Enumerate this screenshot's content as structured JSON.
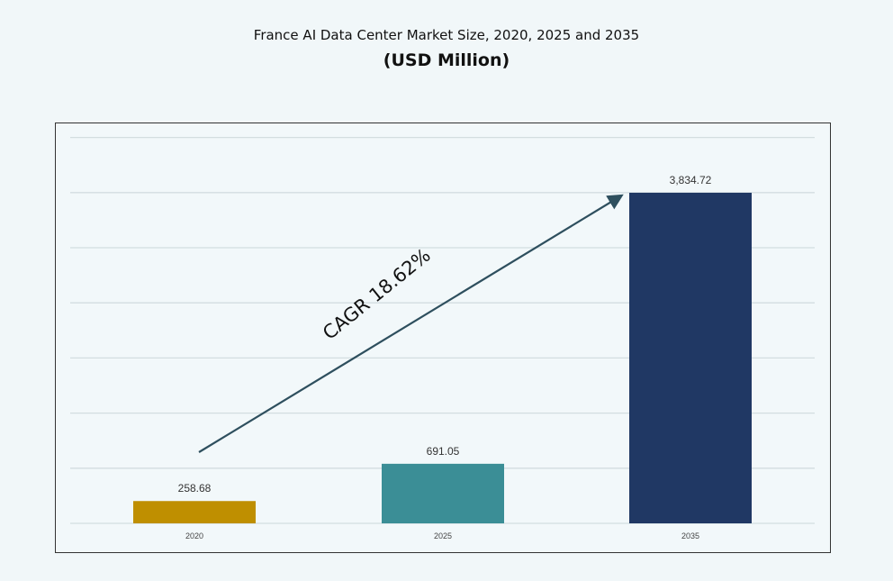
{
  "chart_data": {
    "type": "bar",
    "title": "France AI Data Center Market Size, 2020, 2025 and 2035",
    "subtitle": "(USD Million)",
    "categories": [
      "2020",
      "2025",
      "2035"
    ],
    "values": [
      258.68,
      691.05,
      3834.72
    ],
    "value_labels": [
      "258.68",
      "691.05",
      "3,834.72"
    ],
    "colors": [
      "#bf8f00",
      "#3b8e96",
      "#203864"
    ],
    "annotation": "CAGR 18.62%",
    "annotation_color": "#2e4f5e",
    "grid": true,
    "legend": "none",
    "xlabel": "",
    "ylabel": ""
  }
}
